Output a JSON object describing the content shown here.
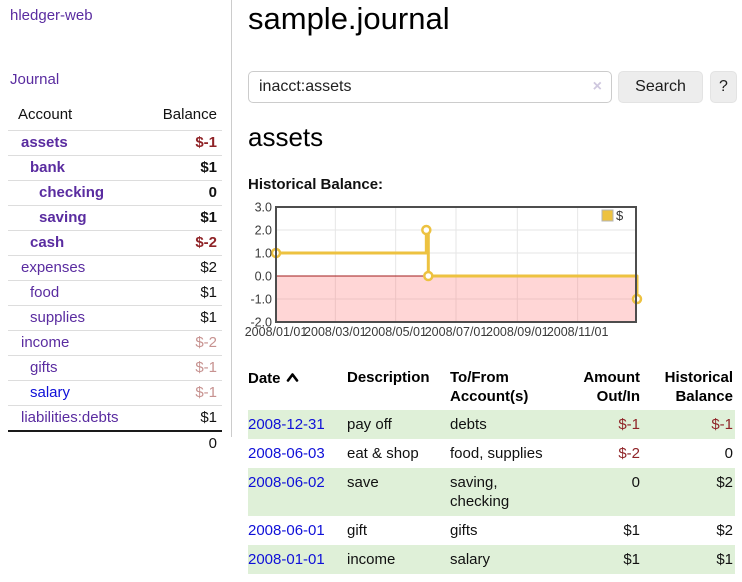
{
  "app": {
    "brand": "hledger-web"
  },
  "colors": {
    "link_purple": "#5a2ca0",
    "link_blue": "#0f10d8",
    "negative_strong": "#8f2327",
    "negative_faded": "#c79290",
    "row_stripe_green": "#dff0d8",
    "chart_line_yellow": "#edc240"
  },
  "sidebar": {
    "journal_link": "Journal",
    "accounts_table": {
      "account_header": "Account",
      "balance_header": "Balance",
      "rows": [
        {
          "account": "assets",
          "balance": "$-1",
          "indent": 0,
          "bold": true,
          "balance_class": "neg",
          "link_class": "purple"
        },
        {
          "account": "bank",
          "balance": "$1",
          "indent": 1,
          "bold": true,
          "balance_class": "",
          "link_class": "purple"
        },
        {
          "account": "checking",
          "balance": "0",
          "indent": 2,
          "bold": true,
          "balance_class": "",
          "link_class": "purple"
        },
        {
          "account": "saving",
          "balance": "$1",
          "indent": 2,
          "bold": true,
          "balance_class": "",
          "link_class": "purple"
        },
        {
          "account": "cash",
          "balance": "$-2",
          "indent": 1,
          "bold": true,
          "balance_class": "neg",
          "link_class": "purple"
        },
        {
          "account": "expenses",
          "balance": "$2",
          "indent": 0,
          "bold": false,
          "balance_class": "",
          "link_class": "purple"
        },
        {
          "account": "food",
          "balance": "$1",
          "indent": 1,
          "bold": false,
          "balance_class": "",
          "link_class": "purple"
        },
        {
          "account": "supplies",
          "balance": "$1",
          "indent": 1,
          "bold": false,
          "balance_class": "",
          "link_class": "purple"
        },
        {
          "account": "income",
          "balance": "$-2",
          "indent": 0,
          "bold": false,
          "balance_class": "neg-faded",
          "link_class": "purple"
        },
        {
          "account": "gifts",
          "balance": "$-1",
          "indent": 1,
          "bold": false,
          "balance_class": "neg-faded",
          "link_class": "purple"
        },
        {
          "account": "salary",
          "balance": "$-1",
          "indent": 1,
          "bold": false,
          "balance_class": "neg-faded",
          "link_class": "blue"
        },
        {
          "account": "liabilities:debts",
          "balance": "$1",
          "indent": 0,
          "bold": false,
          "balance_class": "",
          "link_class": "purple"
        }
      ],
      "total": "0"
    }
  },
  "main": {
    "title": "sample.journal",
    "search": {
      "value": "inacct:assets",
      "clear_icon": "×",
      "search_button": "Search",
      "help_button": "?"
    },
    "account_heading": "assets",
    "chart_title": "Historical Balance:"
  },
  "chart_data": {
    "type": "line",
    "step": true,
    "title": "Historical Balance",
    "legend": [
      {
        "label": "$",
        "color": "#edc240"
      }
    ],
    "legend_position": "top-right",
    "grid": true,
    "x_range": [
      "2008-01-01",
      "2008-12-31"
    ],
    "ylim": [
      -2.0,
      3.0
    ],
    "yticks": [
      3.0,
      2.0,
      1.0,
      0.0,
      -1.0,
      -2.0
    ],
    "xticks": [
      {
        "label": "2008/01/01",
        "date": "2008-01-01"
      },
      {
        "label": "2008/03/01",
        "date": "2008-03-01"
      },
      {
        "label": "2008/05/01",
        "date": "2008-05-01"
      },
      {
        "label": "2008/07/01",
        "date": "2008-07-01"
      },
      {
        "label": "2008/09/01",
        "date": "2008-09-01"
      },
      {
        "label": "2008/11/01",
        "date": "2008-11-01"
      }
    ],
    "points": [
      {
        "date": "2008-01-01",
        "value": 1.0
      },
      {
        "date": "2008-06-01",
        "value": 2.0
      },
      {
        "date": "2008-06-03",
        "value": 0.0
      },
      {
        "date": "2008-12-31",
        "value": -1.0
      }
    ],
    "line_color": "#edc240",
    "marker_fill": "#ffffff",
    "negative_region_color": "rgba(255,105,105,0.27)",
    "zero_line_color": "#a21c1c",
    "grid_color": "#e6e6e6",
    "border_color": "#4d4d4d",
    "tick_label_color": "#3a3a3a"
  },
  "register": {
    "headers": {
      "date": "Date",
      "description": "Description",
      "account": "To/From Account(s)",
      "amount": "Amount Out/In",
      "balance": "Historical Balance"
    },
    "rows": [
      {
        "date": "2008-12-31",
        "description": "pay off",
        "accounts": "debts",
        "amount": "$-1",
        "amount_class": "neg",
        "balance": "$-1",
        "balance_class": "neg"
      },
      {
        "date": "2008-06-03",
        "description": "eat & shop",
        "accounts": "food, supplies",
        "amount": "$-2",
        "amount_class": "neg",
        "balance": "0",
        "balance_class": ""
      },
      {
        "date": "2008-06-02",
        "description": "save",
        "accounts": "saving, checking",
        "amount": "0",
        "amount_class": "",
        "balance": "$2",
        "balance_class": ""
      },
      {
        "date": "2008-06-01",
        "description": "gift",
        "accounts": "gifts",
        "amount": "$1",
        "amount_class": "",
        "balance": "$2",
        "balance_class": ""
      },
      {
        "date": "2008-01-01",
        "description": "income",
        "accounts": "salary",
        "amount": "$1",
        "amount_class": "",
        "balance": "$1",
        "balance_class": ""
      }
    ]
  }
}
